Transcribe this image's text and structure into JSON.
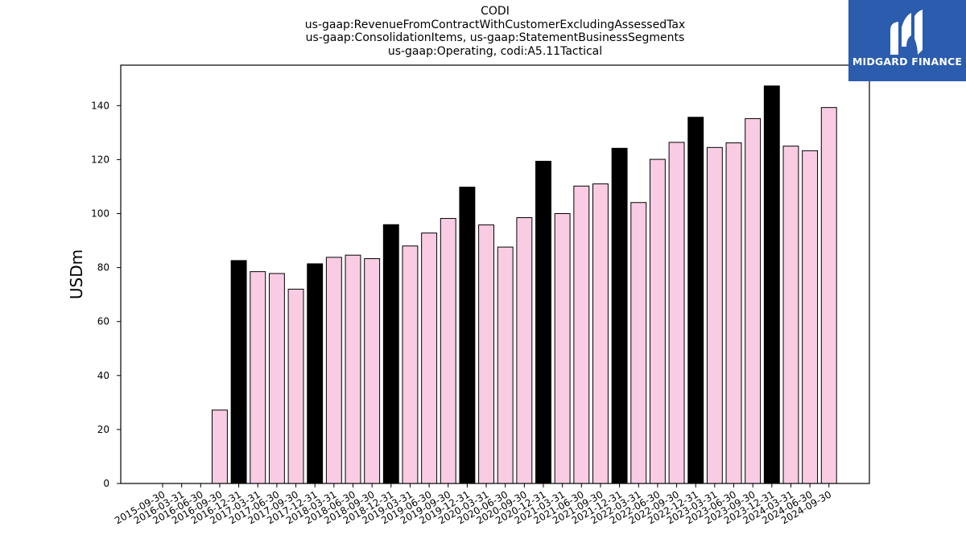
{
  "chart_data": {
    "type": "bar",
    "title_lines": [
      "CODI",
      "us-gaap:RevenueFromContractWithCustomerExcludingAssessedTax",
      "us-gaap:ConsolidationItems, us-gaap:StatementBusinessSegments",
      "us-gaap:Operating, codi:A5.11Tactical"
    ],
    "xlabel": "",
    "ylabel": "USDm",
    "ylim": [
      0,
      155
    ],
    "yticks": [
      0,
      20,
      40,
      60,
      80,
      100,
      120,
      140
    ],
    "categories": [
      "2015-09-30",
      "2016-03-31",
      "2016-06-30",
      "2016-09-30",
      "2016-12-31",
      "2017-03-31",
      "2017-06-30",
      "2017-09-30",
      "2017-12-31",
      "2018-03-31",
      "2018-06-30",
      "2018-09-30",
      "2018-12-31",
      "2019-03-31",
      "2019-06-30",
      "2019-09-30",
      "2019-12-31",
      "2020-03-31",
      "2020-06-30",
      "2020-09-30",
      "2020-12-31",
      "2021-03-31",
      "2021-06-30",
      "2021-09-30",
      "2021-12-31",
      "2022-03-31",
      "2022-06-30",
      "2022-09-30",
      "2022-12-31",
      "2023-03-31",
      "2023-06-30",
      "2023-09-30",
      "2023-12-31",
      "2024-03-31",
      "2024-06-30",
      "2024-09-30"
    ],
    "values": [
      null,
      null,
      null,
      27.2,
      82.6,
      78.5,
      77.8,
      72.0,
      81.4,
      83.8,
      84.6,
      83.3,
      95.9,
      88.0,
      92.8,
      98.2,
      109.8,
      95.8,
      87.6,
      98.5,
      119.4,
      100.0,
      110.2,
      111.0,
      124.2,
      104.1,
      120.1,
      126.4,
      135.7,
      124.5,
      126.2,
      135.2,
      147.3,
      125.0,
      123.3,
      139.3
    ],
    "annual_categories": [
      "2016-12-31",
      "2017-12-31",
      "2018-12-31",
      "2019-12-31",
      "2020-12-31",
      "2021-12-31",
      "2022-12-31",
      "2023-12-31"
    ],
    "colors": {
      "quarterly": "#f9cce4",
      "annual": "#000000",
      "edge": "#000000"
    },
    "grid": false
  },
  "brand": {
    "name": "MIDGARD FINANCE",
    "bg_color": "#2b5cad",
    "icon": "midgard-logo-icon"
  }
}
